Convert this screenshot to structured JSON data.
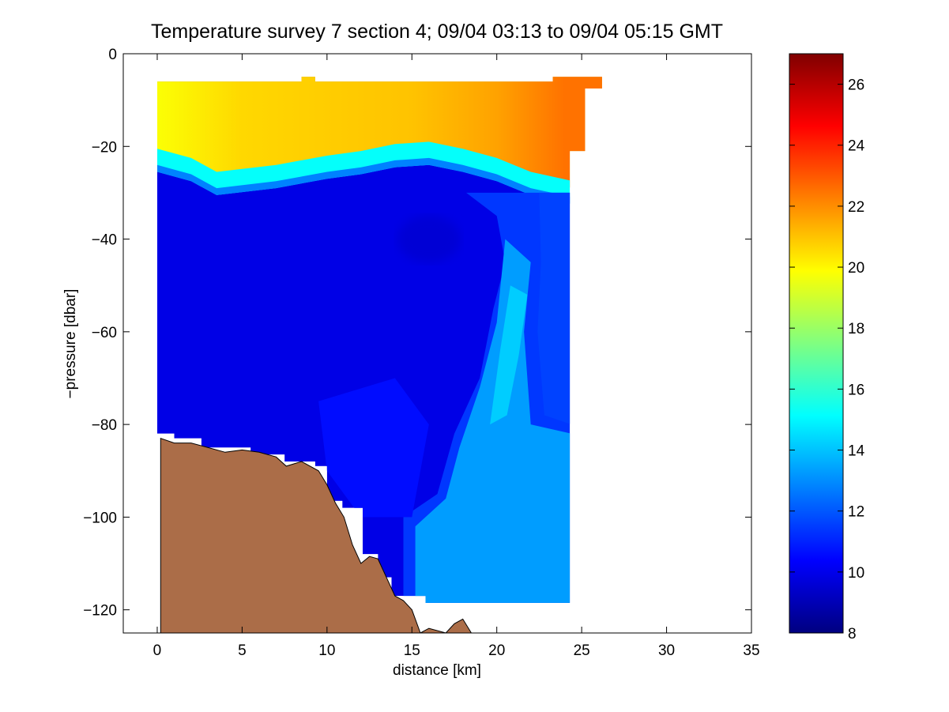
{
  "chart_data": {
    "type": "heatmap",
    "title": "Temperature survey 7 section 4; 09/04 03:13 to 09/04 05:15 GMT",
    "xlabel": "distance [km]",
    "ylabel": "−pressure [dbar]",
    "xlim": [
      -2,
      35
    ],
    "ylim": [
      -125,
      0
    ],
    "x_ticks": [
      0,
      5,
      10,
      15,
      20,
      25,
      30,
      35
    ],
    "x_tick_labels": [
      "0",
      "5",
      "10",
      "15",
      "20",
      "25",
      "30",
      "35"
    ],
    "y_ticks": [
      0,
      -20,
      -40,
      -60,
      -80,
      -100,
      -120
    ],
    "y_tick_labels": [
      "0",
      "−20",
      "−40",
      "−60",
      "−80",
      "−100",
      "−120"
    ],
    "grid": false,
    "colorbar": {
      "range": [
        8,
        27
      ],
      "ticks": [
        8,
        10,
        12,
        14,
        16,
        18,
        20,
        22,
        24,
        26
      ],
      "tick_labels": [
        "8",
        "10",
        "12",
        "14",
        "16",
        "18",
        "20",
        "22",
        "24",
        "26"
      ],
      "colormap": "jet"
    },
    "field": {
      "description_units": "temperature values (colorbar units) over distance km and -pressure dbar",
      "surface_layer": [
        {
          "x": 0,
          "from": -6,
          "to": -22,
          "value": 19.8
        },
        {
          "x": 5,
          "from": -6,
          "to": -26,
          "value": 20.6
        },
        {
          "x": 10,
          "from": -6,
          "to": -23,
          "value": 20.8
        },
        {
          "x": 15,
          "from": -6,
          "to": -20,
          "value": 21.0
        },
        {
          "x": 20,
          "from": -6,
          "to": -22,
          "value": 21.6
        },
        {
          "x": 24,
          "from": -5,
          "to": -26,
          "value": 22.5
        }
      ],
      "deep_layer": [
        {
          "x": 3,
          "depth": -50,
          "value": 9.9
        },
        {
          "x": 9,
          "depth": -60,
          "value": 9.9
        },
        {
          "x": 16,
          "depth": -40,
          "value": 9.6
        },
        {
          "x": 14,
          "depth": -90,
          "value": 11.4
        },
        {
          "x": 20,
          "depth": -60,
          "value": 13.8
        },
        {
          "x": 22,
          "depth": -90,
          "value": 13.6
        },
        {
          "x": 24,
          "depth": -70,
          "value": 12.0
        }
      ]
    },
    "bottom_profile": [
      [
        0.2,
        -83
      ],
      [
        1.0,
        -84
      ],
      [
        2.0,
        -84
      ],
      [
        3.0,
        -85
      ],
      [
        4.0,
        -86
      ],
      [
        5.0,
        -85.5
      ],
      [
        6.0,
        -86
      ],
      [
        7.0,
        -87
      ],
      [
        7.6,
        -89
      ],
      [
        8.5,
        -88
      ],
      [
        9.5,
        -90
      ],
      [
        10.0,
        -93
      ],
      [
        10.5,
        -97
      ],
      [
        11.0,
        -100
      ],
      [
        11.5,
        -106
      ],
      [
        12.0,
        -110
      ],
      [
        12.5,
        -108.5
      ],
      [
        13.0,
        -109
      ],
      [
        13.5,
        -113
      ],
      [
        14.0,
        -117
      ],
      [
        14.5,
        -118
      ],
      [
        15.0,
        -120
      ],
      [
        15.5,
        -125
      ],
      [
        16.0,
        -124
      ],
      [
        17.0,
        -125
      ],
      [
        17.5,
        -123
      ],
      [
        18.0,
        -122
      ],
      [
        18.5,
        -125
      ]
    ],
    "colors": {
      "seabed": "#ab6d48",
      "axes": "#000000",
      "background": "#ffffff"
    }
  }
}
